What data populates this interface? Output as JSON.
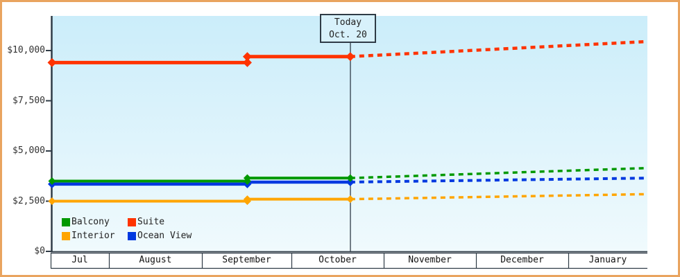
{
  "today_box": {
    "line1": "Today",
    "line2": "Oct. 20"
  },
  "legend": {
    "items": [
      {
        "label": "Balcony",
        "color": "#009900"
      },
      {
        "label": "Suite",
        "color": "#ff3300"
      },
      {
        "label": "Interior",
        "color": "#ffa500"
      },
      {
        "label": "Ocean View",
        "color": "#0038e0"
      }
    ]
  },
  "chart_data": {
    "type": "line",
    "title": "",
    "x_axis_months": [
      "Jul",
      "August",
      "September",
      "October",
      "November",
      "December",
      "January"
    ],
    "y_axis": {
      "tick_values": [
        0,
        2500,
        5000,
        7500,
        10000
      ],
      "tick_labels": [
        "$0",
        "$2,500",
        "$5,000",
        "$7,500",
        "$10,000"
      ],
      "ylim": [
        0,
        11700
      ],
      "grid": false
    },
    "today_annotation": {
      "label": "Today",
      "date": "Oct. 20",
      "t": 0.501
    },
    "style_notes": {
      "history_line": "solid",
      "forecast_line": "dashed",
      "marker": "diamond",
      "legend_position": "bottom-left-inside"
    },
    "series": [
      {
        "name": "Balcony",
        "color": "#009900",
        "history": [
          {
            "t": 0,
            "value": 3500
          },
          {
            "t": 0.328,
            "value": 3500
          },
          {
            "t": 0.328,
            "value": 3650
          },
          {
            "t": 0.501,
            "value": 3650
          }
        ],
        "forecast": [
          {
            "t": 0.501,
            "value": 3650
          },
          {
            "t": 1,
            "value": 4150
          }
        ]
      },
      {
        "name": "Suite",
        "color": "#ff3300",
        "history": [
          {
            "t": 0,
            "value": 9400
          },
          {
            "t": 0.328,
            "value": 9400
          },
          {
            "t": 0.328,
            "value": 9700
          },
          {
            "t": 0.501,
            "value": 9700
          }
        ],
        "forecast": [
          {
            "t": 0.501,
            "value": 9700
          },
          {
            "t": 1,
            "value": 10450
          }
        ]
      },
      {
        "name": "Interior",
        "color": "#ffa500",
        "history": [
          {
            "t": 0,
            "value": 2500
          },
          {
            "t": 0.328,
            "value": 2500
          },
          {
            "t": 0.328,
            "value": 2600
          },
          {
            "t": 0.501,
            "value": 2600
          }
        ],
        "forecast": [
          {
            "t": 0.501,
            "value": 2600
          },
          {
            "t": 1,
            "value": 2850
          }
        ]
      },
      {
        "name": "Ocean View",
        "color": "#0038e0",
        "history": [
          {
            "t": 0,
            "value": 3350
          },
          {
            "t": 0.328,
            "value": 3350
          },
          {
            "t": 0.328,
            "value": 3450
          },
          {
            "t": 0.501,
            "value": 3450
          }
        ],
        "forecast": [
          {
            "t": 0.501,
            "value": 3450
          },
          {
            "t": 1,
            "value": 3650
          }
        ]
      }
    ]
  }
}
